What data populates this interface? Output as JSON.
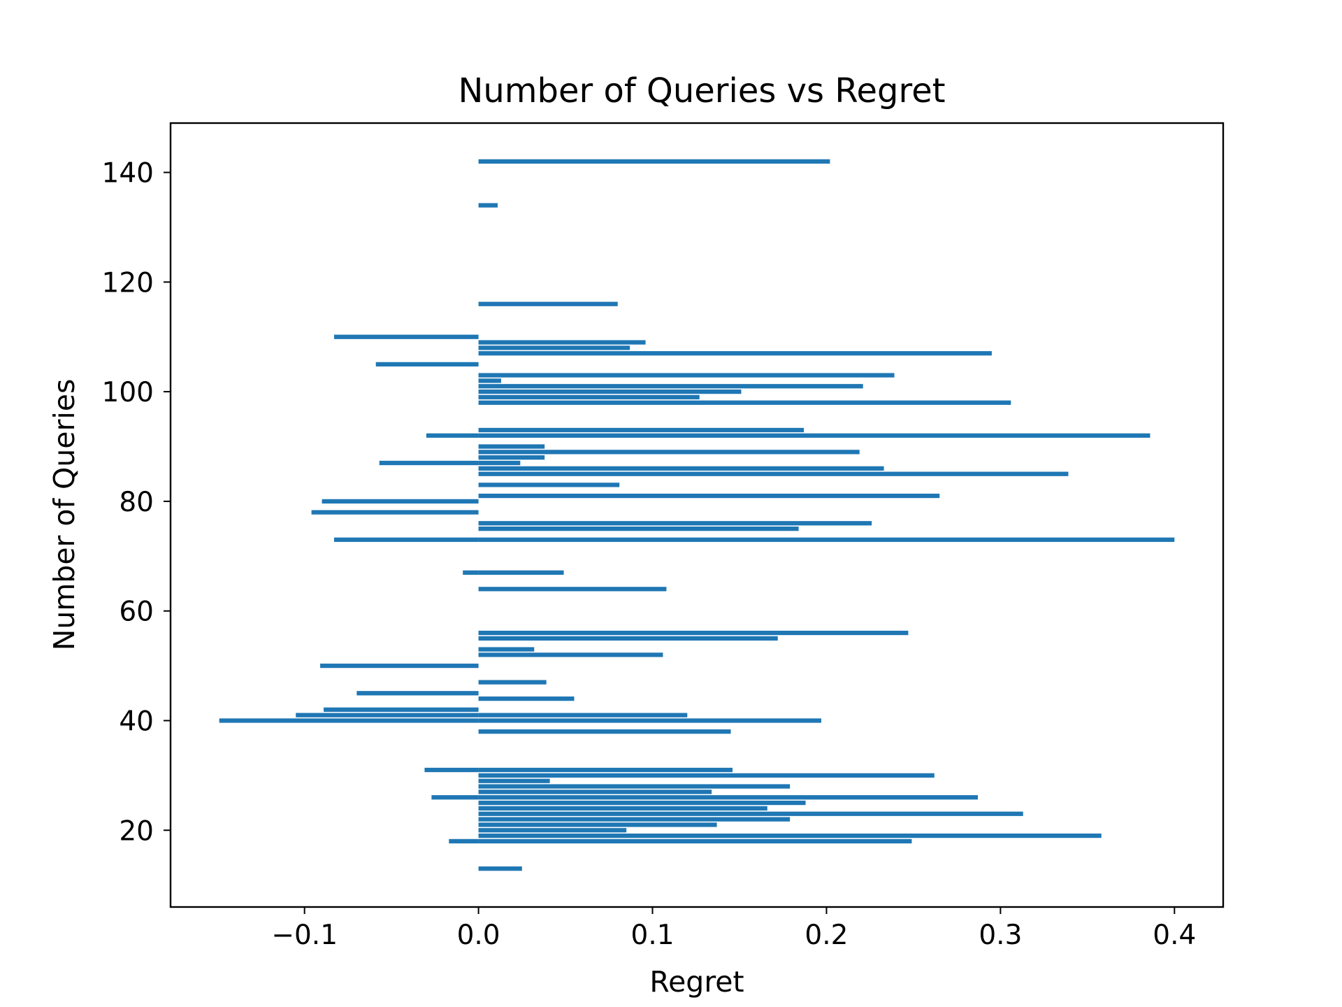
{
  "colors": {
    "bar": "#1f77b4",
    "axis": "#000000",
    "background": "#ffffff"
  },
  "chart_data": {
    "type": "bar",
    "orientation": "horizontal",
    "title": "Number of Queries vs Regret",
    "xlabel": "Regret",
    "ylabel": "Number of Queries",
    "xlim": [
      -0.177,
      0.428
    ],
    "ylim": [
      6,
      149
    ],
    "xticks": [
      -0.1,
      0.0,
      0.1,
      0.2,
      0.3,
      0.4
    ],
    "xtick_labels": [
      "−0.1",
      "0.0",
      "0.1",
      "0.2",
      "0.3",
      "0.4"
    ],
    "yticks": [
      20,
      40,
      60,
      80,
      100,
      120,
      140
    ],
    "ytick_labels": [
      "20",
      "40",
      "60",
      "80",
      "100",
      "120",
      "140"
    ],
    "grid": false,
    "legend": "none",
    "bar_height": 0.8,
    "y": [
      13,
      18,
      18,
      19,
      20,
      21,
      22,
      23,
      24,
      25,
      26,
      26,
      27,
      28,
      29,
      30,
      31,
      31,
      38,
      40,
      40,
      41,
      41,
      42,
      44,
      45,
      47,
      50,
      52,
      53,
      55,
      56,
      64,
      67,
      67,
      73,
      73,
      75,
      76,
      78,
      80,
      81,
      83,
      85,
      86,
      87,
      87,
      88,
      89,
      90,
      92,
      92,
      93,
      98,
      99,
      100,
      101,
      102,
      103,
      105,
      107,
      108,
      109,
      110,
      116,
      134,
      142
    ],
    "values": [
      0.025,
      -0.017,
      0.249,
      0.358,
      0.085,
      0.137,
      0.179,
      0.313,
      0.166,
      0.188,
      -0.027,
      0.287,
      0.134,
      0.179,
      0.041,
      0.262,
      -0.031,
      0.146,
      0.145,
      -0.149,
      0.197,
      -0.105,
      0.12,
      -0.089,
      0.055,
      -0.07,
      0.039,
      -0.091,
      0.106,
      0.032,
      0.172,
      0.247,
      0.108,
      -0.009,
      0.049,
      -0.083,
      0.4,
      0.184,
      0.226,
      -0.096,
      -0.09,
      0.265,
      0.081,
      0.339,
      0.233,
      -0.057,
      0.024,
      0.038,
      0.219,
      0.038,
      -0.03,
      0.386,
      0.187,
      0.306,
      0.127,
      0.151,
      0.221,
      0.013,
      0.239,
      -0.059,
      0.295,
      0.087,
      0.096,
      -0.083,
      0.08,
      0.011,
      0.202
    ]
  }
}
